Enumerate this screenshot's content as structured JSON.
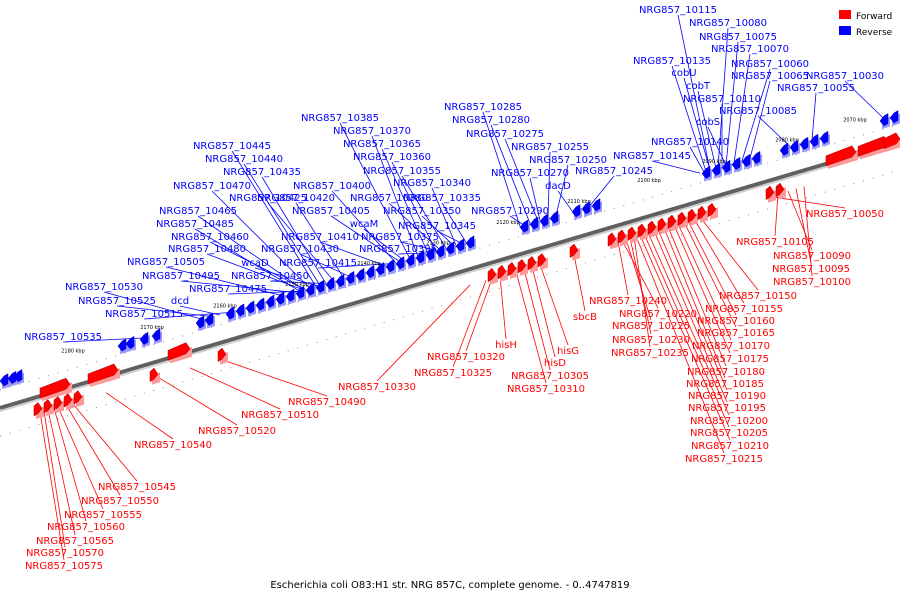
{
  "caption": "Escherichia coli O83:H1 str. NRG 857C, complete genome. - 0..4747819",
  "legend": [
    {
      "label": "Forward",
      "color": "#ff0000"
    },
    {
      "label": "Reverse",
      "color": "#0000ff"
    }
  ],
  "colors": {
    "forward": "#ff0000",
    "reverse": "#0000ff",
    "backbone": "#606060"
  },
  "ticks": [
    "2180 kbp",
    "2170 kbp",
    "2160 kbp",
    "2150 kbp",
    "2140 kbp",
    "2130 kbp",
    "2120 kbp",
    "2110 kbp",
    "2100 kbp",
    "2090 kbp",
    "2080 kbp",
    "2070 kbp"
  ],
  "reverse_labels": [
    "NRG857_10115",
    "NRG857_10080",
    "NRG857_10075",
    "NRG857_10070",
    "NRG857_10060",
    "NRG857_10065",
    "NRG857_10030",
    "NRG857_10135",
    "cobU",
    "cobT",
    "NRG857_10055",
    "NRG857_10110",
    "cobS",
    "NRG857_10085",
    "NRG857_10285",
    "NRG857_10280",
    "NRG857_10275",
    "NRG857_10255",
    "NRG857_10250",
    "NRG857_10270",
    "NRG857_10245",
    "NRG857_10140",
    "NRG857_10145",
    "dacD",
    "NRG857_10290",
    "NRG857_10385",
    "NRG857_10370",
    "NRG857_10365",
    "NRG857_10360",
    "NRG857_10355",
    "NRG857_10340",
    "NRG857_10400",
    "NRG857_10380",
    "NRG857_10335",
    "NRG857_10405",
    "NRG857_10350",
    "wcaM",
    "NRG857_10345",
    "NRG857_10410",
    "NRG857_10375",
    "NRG857_10395",
    "NRG857_10415",
    "NRG857_10445",
    "NRG857_10440",
    "NRG857_10435",
    "NRG857_10470",
    "NRG857_10425",
    "NRG857_10465",
    "NRG857_10420",
    "NRG857_10485",
    "NRG857_10460",
    "NRG857_10430",
    "NRG857_10480",
    "wcaD",
    "NRG857_10505",
    "NRG857_10450",
    "NRG857_10495",
    "NRG857_10475",
    "NRG857_10530",
    "NRG857_10525",
    "dcd",
    "NRG857_10515",
    "NRG857_10535"
  ],
  "forward_labels": [
    "NRG857_10050",
    "NRG857_10105",
    "NRG857_10090",
    "NRG857_10095",
    "NRG857_10100",
    "NRG857_10150",
    "NRG857_10155",
    "NRG857_10160",
    "NRG857_10165",
    "NRG857_10170",
    "NRG857_10175",
    "NRG857_10180",
    "NRG857_10185",
    "NRG857_10190",
    "NRG857_10195",
    "NRG857_10200",
    "NRG857_10205",
    "NRG857_10210",
    "NRG857_10215",
    "sbcB",
    "NRG857_10240",
    "NRG857_10220",
    "NRG857_10225",
    "NRG857_10230",
    "NRG857_10235",
    "hisH",
    "hisG",
    "hisD",
    "NRG857_10305",
    "NRG857_10310",
    "NRG857_10320",
    "NRG857_10325",
    "NRG857_10330",
    "NRG857_10490",
    "NRG857_10510",
    "NRG857_10520",
    "NRG857_10540",
    "NRG857_10545",
    "NRG857_10550",
    "NRG857_10555",
    "NRG857_10560",
    "NRG857_10565",
    "NRG857_10570",
    "NRG857_10575"
  ]
}
